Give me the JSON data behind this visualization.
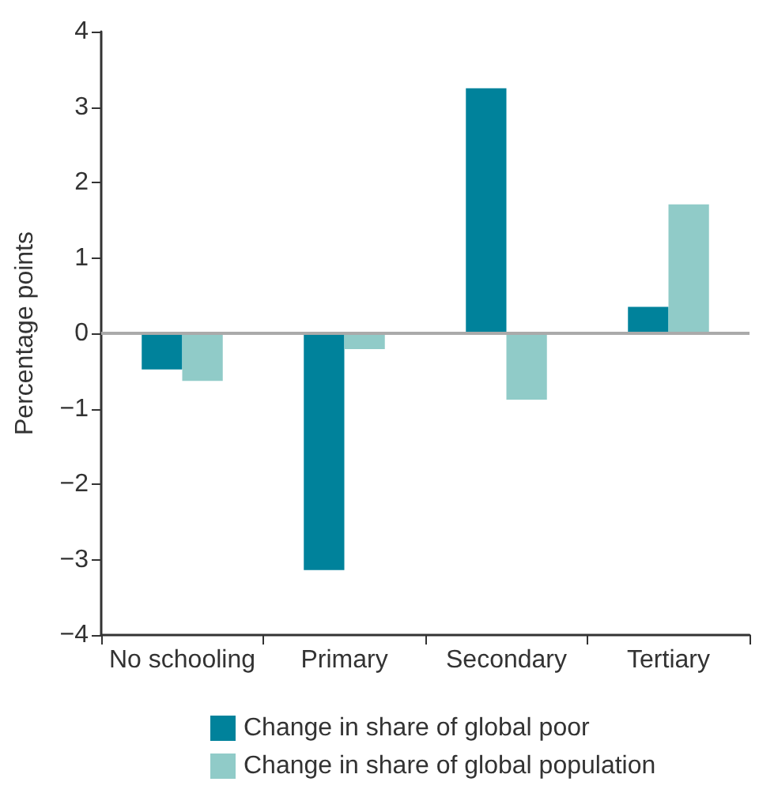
{
  "chart_data": {
    "type": "bar",
    "ylabel": "Percentage points",
    "categories": [
      "No schooling",
      "Primary",
      "Secondary",
      "Tertiary"
    ],
    "series": [
      {
        "name": "Change in share of global poor",
        "color": "#00829b",
        "values": [
          -0.48,
          -3.14,
          3.25,
          0.35
        ]
      },
      {
        "name": "Change in share of global population",
        "color": "#90cbc8",
        "values": [
          -0.63,
          -0.21,
          -0.88,
          1.71
        ]
      }
    ],
    "ylim": [
      -4,
      4
    ],
    "yticks": [
      -4,
      -3,
      -2,
      -1,
      0,
      1,
      2,
      3,
      4
    ],
    "ref_lines": [
      {
        "axis": "y",
        "value": 0,
        "color": "#aaaaaa"
      }
    ],
    "grid": false,
    "legend": "bottom"
  }
}
